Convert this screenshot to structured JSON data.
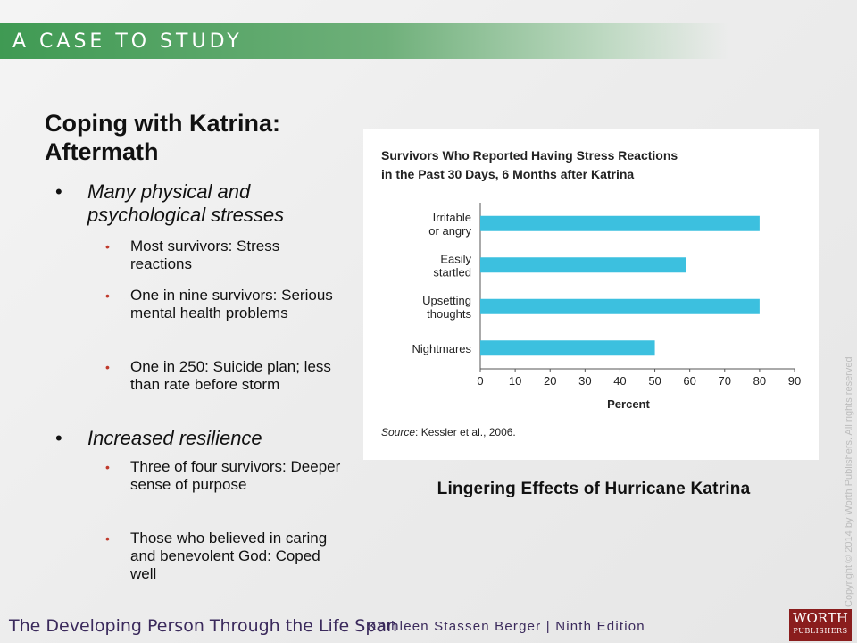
{
  "header": {
    "banner": "A CASE TO STUDY"
  },
  "slide": {
    "title": "Coping with Katrina: Aftermath",
    "bullets": [
      {
        "text": "Many physical and psychological stresses",
        "sub": [
          "Most survivors: Stress reactions",
          "One in nine survivors: Serious mental health problems",
          "One in 250: Suicide plan; less than rate before storm"
        ]
      },
      {
        "text": "Increased resilience",
        "sub": [
          "Three of four survivors: Deeper sense of purpose",
          "Those who believed in caring and benevolent God: Coped well"
        ]
      }
    ],
    "caption": "Lingering Effects of Hurricane Katrina"
  },
  "chart_data": {
    "type": "bar",
    "orientation": "horizontal",
    "title": "Survivors Who Reported Having Stress Reactions in the Past 30 Days, 6 Months after Katrina",
    "categories": [
      "Irritable or angry",
      "Easily startled",
      "Upsetting thoughts",
      "Nightmares"
    ],
    "values": [
      80,
      59,
      80,
      50
    ],
    "xlabel": "Percent",
    "ylabel": "",
    "xlim": [
      0,
      90
    ],
    "xticks": [
      0,
      10,
      20,
      30,
      40,
      50,
      60,
      70,
      80,
      90
    ],
    "source_label": "Source",
    "source": "Kessler et al., 2006.",
    "bar_color": "#3cc0df",
    "grid": false
  },
  "side": {
    "copyright": "Copyright © 2014 by Worth Publishers. All rights reserved"
  },
  "footer": {
    "book": "The Developing Person Through the Life Span",
    "author": "Kathleen Stassen Berger | Ninth Edition",
    "publisher_line1": "WORTH",
    "publisher_line2": "PUBLISHERS"
  }
}
